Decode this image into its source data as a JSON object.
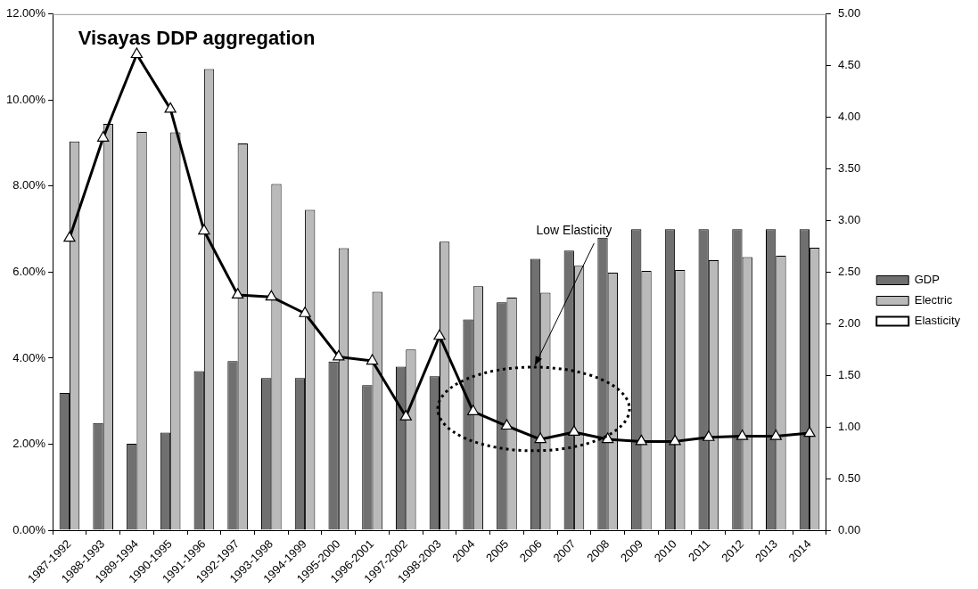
{
  "chart_data": {
    "type": "bar",
    "title": "Visayas DDP aggregation",
    "categories": [
      "1987-1992",
      "1988-1993",
      "1989-1994",
      "1990-1995",
      "1991-1996",
      "1992-1997",
      "1993-1998",
      "1994-1999",
      "1995-2000",
      "1996-2001",
      "1997-2002",
      "1998-2003",
      "2004",
      "2005",
      "2006",
      "2007",
      "2008",
      "2009",
      "2010",
      "2011",
      "2012",
      "2013",
      "2014"
    ],
    "series": [
      {
        "name": "GDP",
        "color": "#707070",
        "values": [
          3.19,
          2.49,
          2.01,
          2.27,
          3.7,
          3.93,
          3.54,
          3.54,
          3.92,
          3.37,
          3.8,
          3.58,
          4.9,
          5.3,
          6.31,
          6.5,
          6.8,
          7.0,
          7.0,
          7.0,
          7.0,
          7.0,
          7.0
        ]
      },
      {
        "name": "Electric",
        "color": "#bababa",
        "values": [
          9.04,
          9.45,
          9.26,
          9.25,
          10.72,
          8.99,
          8.05,
          7.45,
          6.56,
          5.54,
          4.2,
          6.71,
          5.67,
          5.41,
          5.52,
          6.15,
          5.99,
          6.03,
          6.05,
          6.28,
          6.35,
          6.38,
          6.57
        ]
      },
      {
        "name": "Elasticity",
        "type": "line",
        "axis": "y2",
        "color": "#000000",
        "values": [
          2.83,
          3.8,
          4.61,
          4.08,
          2.9,
          2.28,
          2.26,
          2.1,
          1.68,
          1.64,
          1.1,
          1.88,
          1.15,
          1.01,
          0.88,
          0.95,
          0.88,
          0.86,
          0.86,
          0.9,
          0.91,
          0.91,
          0.94
        ]
      }
    ],
    "ylim": [
      0,
      12
    ],
    "yticks": [
      {
        "value": 0,
        "label": "0.00%"
      },
      {
        "value": 2,
        "label": "2.00%"
      },
      {
        "value": 4,
        "label": "4.00%"
      },
      {
        "value": 6,
        "label": "6.00%"
      },
      {
        "value": 8,
        "label": "8.00%"
      },
      {
        "value": 10,
        "label": "10.00%"
      },
      {
        "value": 12,
        "label": "12.00%"
      }
    ],
    "y2lim": [
      0,
      5
    ],
    "y2ticks": [
      {
        "value": 0,
        "label": "0.00"
      },
      {
        "value": 0.5,
        "label": "0.50"
      },
      {
        "value": 1,
        "label": "1.00"
      },
      {
        "value": 1.5,
        "label": "1.50"
      },
      {
        "value": 2,
        "label": "2.00"
      },
      {
        "value": 2.5,
        "label": "2.50"
      },
      {
        "value": 3,
        "label": "3.00"
      },
      {
        "value": 3.5,
        "label": "3.50"
      },
      {
        "value": 4,
        "label": "4.00"
      },
      {
        "value": 4.5,
        "label": "4.50"
      },
      {
        "value": 5,
        "label": "5.00"
      }
    ],
    "annotations": [
      "Low Elasticity"
    ],
    "legend": "right",
    "marker": "triangle",
    "line_style": "solid",
    "grid": false
  }
}
